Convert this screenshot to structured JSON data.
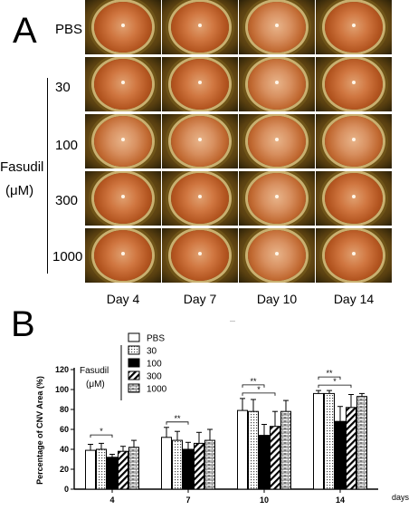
{
  "panelA": {
    "letter": "A",
    "rows": [
      "PBS",
      "30",
      "100",
      "300",
      "1000"
    ],
    "group_label_line1": "Fasudil",
    "group_label_line2": "(μM)",
    "columns": [
      "Day 4",
      "Day 7",
      "Day 10",
      "Day 14"
    ]
  },
  "panelB": {
    "letter": "B",
    "small_mark": "—"
  },
  "chart_data": {
    "type": "bar",
    "categories": [
      "4",
      "7",
      "10",
      "14"
    ],
    "xlabel": "days",
    "ylabel": "Percentage of CNV Area (%)",
    "ylim": [
      0,
      120
    ],
    "yticks": [
      0,
      20,
      40,
      60,
      80,
      100,
      120
    ],
    "legend": {
      "group_label_line1": "Fasudil",
      "group_label_line2": "(μM)",
      "position": "top-left"
    },
    "series": [
      {
        "name": "PBS",
        "pattern": "white",
        "values": [
          39,
          52,
          79,
          96
        ],
        "errors": [
          6,
          10,
          12,
          3
        ]
      },
      {
        "name": "30",
        "pattern": "dots",
        "values": [
          40,
          49,
          78,
          96
        ],
        "errors": [
          6,
          9,
          12,
          3
        ]
      },
      {
        "name": "100",
        "pattern": "black",
        "values": [
          32,
          40,
          54,
          68
        ],
        "errors": [
          3,
          7,
          11,
          15
        ]
      },
      {
        "name": "300",
        "pattern": "hatch",
        "values": [
          38,
          46,
          63,
          82
        ],
        "errors": [
          5,
          11,
          15,
          13
        ]
      },
      {
        "name": "1000",
        "pattern": "brick",
        "values": [
          42,
          49,
          78,
          93
        ],
        "errors": [
          7,
          11,
          11,
          3
        ]
      }
    ],
    "significance": [
      {
        "category": "4",
        "from": "PBS",
        "to": "100",
        "label": "*"
      },
      {
        "category": "7",
        "from": "PBS",
        "to": "100",
        "label": "**"
      },
      {
        "category": "10",
        "from": "PBS",
        "to": "100",
        "label": "**"
      },
      {
        "category": "10",
        "from": "PBS",
        "to": "300",
        "label": "*"
      },
      {
        "category": "14",
        "from": "PBS",
        "to": "100",
        "label": "**"
      },
      {
        "category": "14",
        "from": "PBS",
        "to": "300",
        "label": "*"
      }
    ]
  }
}
